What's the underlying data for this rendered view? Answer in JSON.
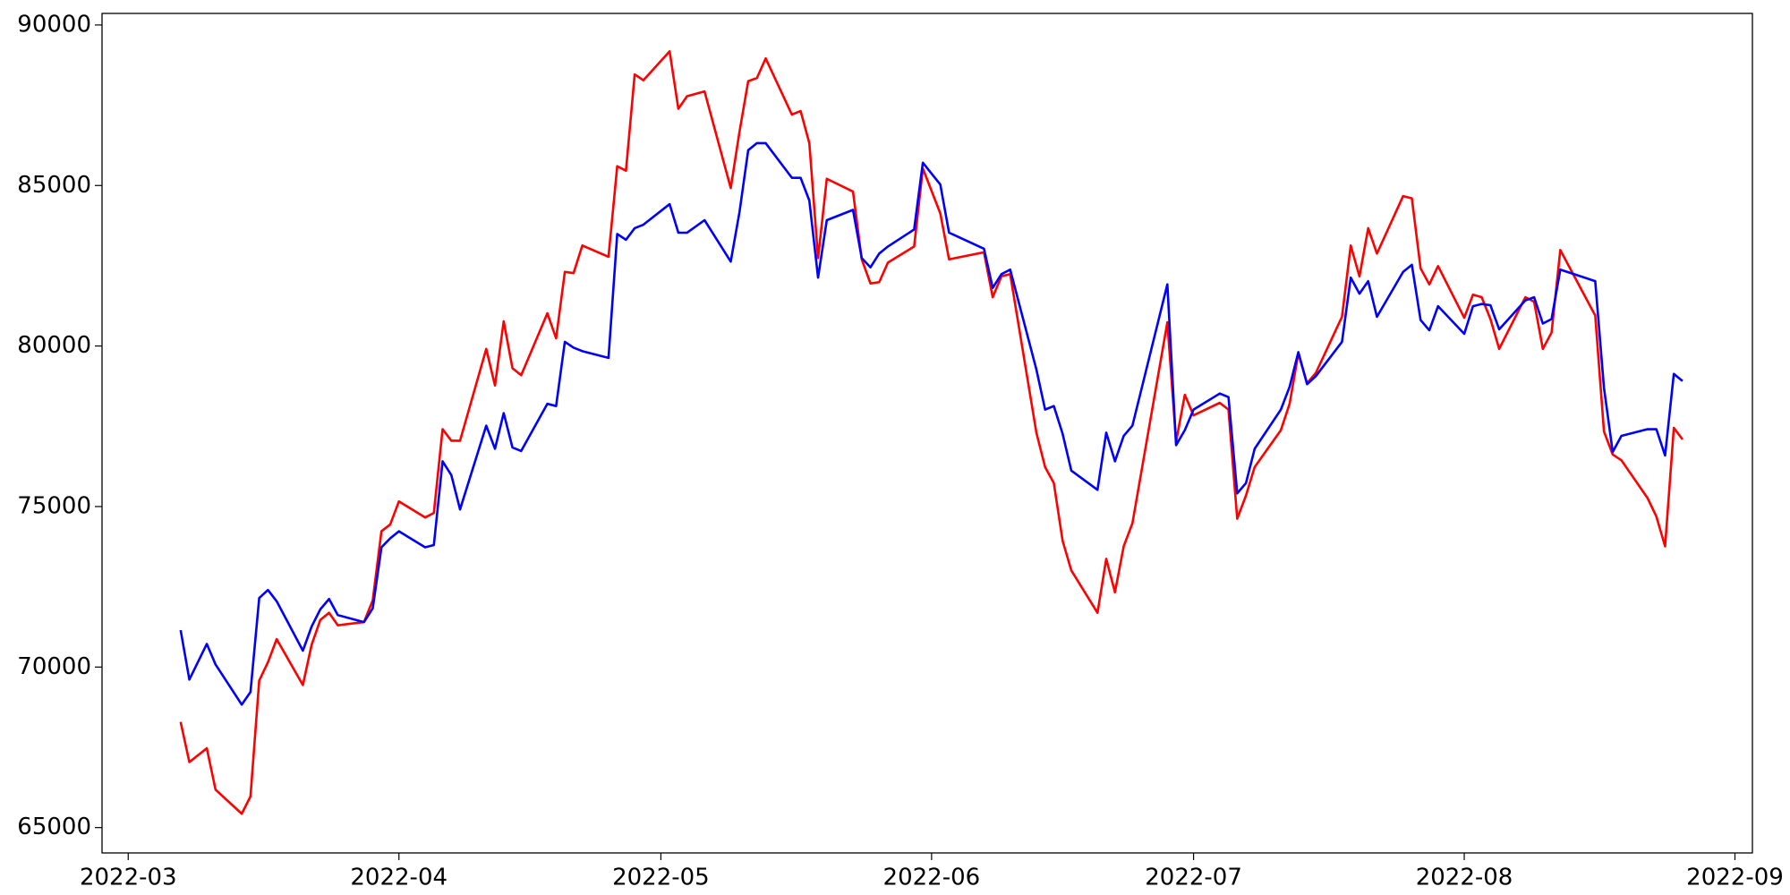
{
  "chart_data": {
    "type": "line",
    "x": [
      "2022-03-07",
      "2022-03-08",
      "2022-03-10",
      "2022-03-11",
      "2022-03-14",
      "2022-03-15",
      "2022-03-16",
      "2022-03-17",
      "2022-03-18",
      "2022-03-21",
      "2022-03-22",
      "2022-03-23",
      "2022-03-24",
      "2022-03-25",
      "2022-03-28",
      "2022-03-29",
      "2022-03-30",
      "2022-03-31",
      "2022-04-01",
      "2022-04-04",
      "2022-04-05",
      "2022-04-06",
      "2022-04-07",
      "2022-04-08",
      "2022-04-11",
      "2022-04-12",
      "2022-04-13",
      "2022-04-14",
      "2022-04-15",
      "2022-04-18",
      "2022-04-19",
      "2022-04-20",
      "2022-04-21",
      "2022-04-22",
      "2022-04-25",
      "2022-04-26",
      "2022-04-27",
      "2022-04-28",
      "2022-04-29",
      "2022-05-02",
      "2022-05-03",
      "2022-05-04",
      "2022-05-06",
      "2022-05-09",
      "2022-05-10",
      "2022-05-11",
      "2022-05-12",
      "2022-05-13",
      "2022-05-16",
      "2022-05-17",
      "2022-05-18",
      "2022-05-19",
      "2022-05-20",
      "2022-05-23",
      "2022-05-24",
      "2022-05-25",
      "2022-05-26",
      "2022-05-27",
      "2022-05-30",
      "2022-05-31",
      "2022-06-02",
      "2022-06-03",
      "2022-06-07",
      "2022-06-08",
      "2022-06-09",
      "2022-06-10",
      "2022-06-13",
      "2022-06-14",
      "2022-06-15",
      "2022-06-16",
      "2022-06-17",
      "2022-06-20",
      "2022-06-21",
      "2022-06-22",
      "2022-06-23",
      "2022-06-24",
      "2022-06-28",
      "2022-06-29",
      "2022-06-30",
      "2022-07-01",
      "2022-07-04",
      "2022-07-05",
      "2022-07-06",
      "2022-07-07",
      "2022-07-08",
      "2022-07-11",
      "2022-07-12",
      "2022-07-13",
      "2022-07-14",
      "2022-07-15",
      "2022-07-18",
      "2022-07-19",
      "2022-07-20",
      "2022-07-21",
      "2022-07-22",
      "2022-07-25",
      "2022-07-26",
      "2022-07-27",
      "2022-07-28",
      "2022-07-29",
      "2022-08-01",
      "2022-08-02",
      "2022-08-03",
      "2022-08-04",
      "2022-08-05",
      "2022-08-08",
      "2022-08-09",
      "2022-08-10",
      "2022-08-11",
      "2022-08-12",
      "2022-08-16",
      "2022-08-17",
      "2022-08-18",
      "2022-08-19",
      "2022-08-22",
      "2022-08-23",
      "2022-08-24",
      "2022-08-25",
      "2022-08-26"
    ],
    "series": [
      {
        "color": "#ff0000",
        "values": [
          68290,
          67040,
          67470,
          66180,
          65430,
          65970,
          69580,
          70150,
          70870,
          69440,
          70690,
          71470,
          71690,
          71300,
          71400,
          72080,
          74230,
          74440,
          75160,
          74660,
          74800,
          77410,
          77050,
          77050,
          79910,
          78770,
          80770,
          79310,
          79090,
          81020,
          80240,
          82310,
          82270,
          83130,
          82780,
          85600,
          85460,
          88460,
          88280,
          89180,
          87390,
          87780,
          87930,
          84920,
          86670,
          88250,
          88350,
          88960,
          87210,
          87320,
          86320,
          82740,
          85210,
          84810,
          82700,
          81950,
          81990,
          82600,
          83100,
          85530,
          84130,
          82700,
          82920,
          81520,
          82170,
          82240,
          77300,
          76230,
          75730,
          73940,
          73010,
          71690,
          73370,
          72330,
          73760,
          74480,
          80740,
          77020,
          78480,
          77840,
          78230,
          78020,
          74620,
          75340,
          76230,
          77380,
          78200,
          79770,
          78840,
          79160,
          80910,
          83130,
          82170,
          83670,
          82880,
          84670,
          84600,
          82420,
          81920,
          82490,
          80880,
          81600,
          81520,
          80840,
          79910,
          81520,
          81380,
          79910,
          80420,
          82990,
          80950,
          77340,
          76620,
          76440,
          75260,
          74690,
          73760,
          77450,
          77090
        ]
      },
      {
        "color": "#0000ff",
        "values": [
          71150,
          69610,
          70720,
          70080,
          68830,
          69220,
          72150,
          72400,
          72050,
          70510,
          71260,
          71800,
          72120,
          71620,
          71400,
          71830,
          73730,
          74010,
          74230,
          73730,
          73800,
          76410,
          75980,
          74910,
          77520,
          76800,
          77910,
          76840,
          76730,
          78200,
          78130,
          80130,
          79950,
          79840,
          79630,
          83490,
          83310,
          83670,
          83780,
          84420,
          83530,
          83530,
          83920,
          82630,
          84170,
          86100,
          86320,
          86320,
          85240,
          85240,
          84530,
          82130,
          83920,
          84240,
          82740,
          82450,
          82880,
          83100,
          83630,
          85710,
          85030,
          83530,
          83030,
          81810,
          82240,
          82380,
          79270,
          78020,
          78130,
          77270,
          76120,
          75520,
          77300,
          76410,
          77200,
          77520,
          81920,
          76910,
          77380,
          78020,
          78520,
          78410,
          75410,
          75730,
          76800,
          78020,
          78730,
          79810,
          78810,
          79060,
          80130,
          82130,
          81630,
          82020,
          80910,
          82310,
          82530,
          80810,
          80490,
          81240,
          80380,
          81240,
          81310,
          81270,
          80520,
          81420,
          81520,
          80700,
          80840,
          82380,
          82020,
          78700,
          76700,
          77200,
          77410,
          77410,
          76590,
          79130,
          78910
        ]
      }
    ],
    "xlim": [
      "2022-02-26",
      "2022-09-03"
    ],
    "xticks": [
      {
        "value": "2022-03-01",
        "label": "2022-03"
      },
      {
        "value": "2022-04-01",
        "label": "2022-04"
      },
      {
        "value": "2022-05-01",
        "label": "2022-05"
      },
      {
        "value": "2022-06-01",
        "label": "2022-06"
      },
      {
        "value": "2022-07-01",
        "label": "2022-07"
      },
      {
        "value": "2022-08-01",
        "label": "2022-08"
      },
      {
        "value": "2022-09-01",
        "label": "2022-09"
      }
    ],
    "ylim": [
      64210,
      90360
    ],
    "yticks": [
      65000,
      70000,
      75000,
      80000,
      85000,
      90000
    ],
    "grid": false
  }
}
